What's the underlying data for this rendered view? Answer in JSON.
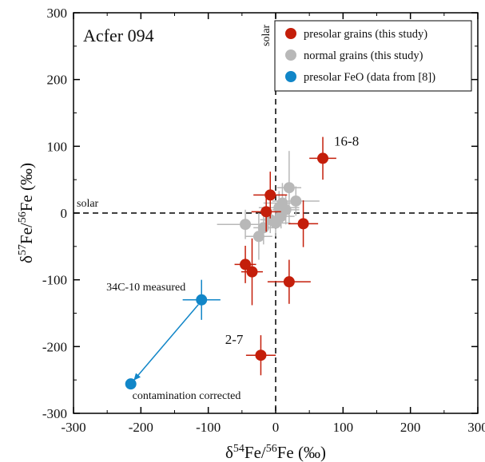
{
  "chart_data": {
    "type": "scatter",
    "title": "",
    "panel_label": "Acfer 094",
    "xlabel": {
      "prefix": "δ",
      "sup1": "54",
      "mid": "Fe/",
      "sup2": "56",
      "end": "Fe (‰)"
    },
    "ylabel": {
      "prefix": "δ",
      "sup1": "57",
      "mid": "Fe/",
      "sup2": "56",
      "end": "Fe (‰)"
    },
    "xlim": [
      -300,
      300
    ],
    "ylim": [
      -300,
      300
    ],
    "xticks": [
      -300,
      -200,
      -100,
      0,
      100,
      200,
      300
    ],
    "yticks": [
      -300,
      -200,
      -100,
      0,
      100,
      200,
      300
    ],
    "reference_lines": [
      {
        "axis": "x",
        "value": 0,
        "label": "solar",
        "style": "dashed"
      },
      {
        "axis": "y",
        "value": 0,
        "label": "solar",
        "style": "dashed"
      }
    ],
    "legend": {
      "position": "top-right",
      "entries": [
        "presolar grains (this study)",
        "normal grains (this study)",
        "presolar FeO (data from [8])"
      ]
    },
    "series": [
      {
        "name": "presolar grains (this study)",
        "color": "#c41e0a",
        "points": [
          {
            "x": 70,
            "y": 82,
            "xerr": 20,
            "yerr": 32,
            "label": "16-8"
          },
          {
            "x": -8,
            "y": 27,
            "xerr": 25,
            "yerr": 35
          },
          {
            "x": -14,
            "y": 2,
            "xerr": 22,
            "yerr": 30
          },
          {
            "x": 41,
            "y": -16,
            "xerr": 22,
            "yerr": 35
          },
          {
            "x": -45,
            "y": -77,
            "xerr": 16,
            "yerr": 28
          },
          {
            "x": -35,
            "y": -88,
            "xerr": 16,
            "yerr": 50
          },
          {
            "x": 20,
            "y": -103,
            "xerr": 32,
            "yerr": 33
          },
          {
            "x": -22,
            "y": -213,
            "xerr": 22,
            "yerr": 30,
            "label": "2-7"
          }
        ]
      },
      {
        "name": "normal grains (this study)",
        "color": "#b8b8b8",
        "points": [
          {
            "x": -45,
            "y": -17,
            "xerr": 42,
            "yerr": 22
          },
          {
            "x": -25,
            "y": -35,
            "xerr": 20,
            "yerr": 35
          },
          {
            "x": -18,
            "y": -22,
            "xerr": 15,
            "yerr": 25
          },
          {
            "x": -8,
            "y": -10,
            "xerr": 15,
            "yerr": 20
          },
          {
            "x": 5,
            "y": 8,
            "xerr": 30,
            "yerr": 25
          },
          {
            "x": 10,
            "y": 15,
            "xerr": 28,
            "yerr": 30
          },
          {
            "x": 15,
            "y": 5,
            "xerr": 20,
            "yerr": 22
          },
          {
            "x": 20,
            "y": 38,
            "xerr": 18,
            "yerr": 55
          },
          {
            "x": 30,
            "y": 18,
            "xerr": 35,
            "yerr": 22
          },
          {
            "x": 8,
            "y": -5,
            "xerr": 20,
            "yerr": 18
          },
          {
            "x": 0,
            "y": -15,
            "xerr": 22,
            "yerr": 20
          }
        ]
      },
      {
        "name": "presolar FeO (data from [8])",
        "color": "#1186c8",
        "points": [
          {
            "x": -110,
            "y": -130,
            "xerr": 28,
            "yerr": 30,
            "label": "34C-10 measured"
          },
          {
            "x": -215,
            "y": -256,
            "label": "contamination corrected"
          }
        ]
      }
    ],
    "arrow": {
      "from": [
        -110,
        -130
      ],
      "to": [
        -210,
        -250
      ],
      "color": "#1186c8"
    }
  }
}
